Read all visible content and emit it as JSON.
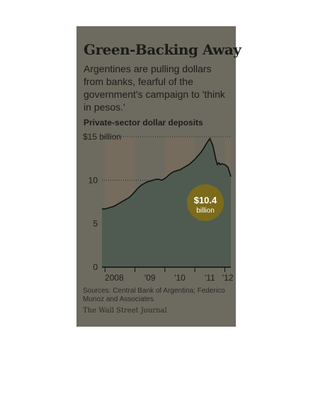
{
  "headline": "Green-Backing Away",
  "dek": "Argentines are pulling dollars from banks, fearful of the government's campaign to 'think in pesos.'",
  "footer": {
    "source": "Sources: Central Bank of Argentina; Federico Munoz and Associates",
    "publisher": "The Wall Street Journal"
  },
  "colors": {
    "panel": "#6d6b60",
    "area": "#4f5b50",
    "line": "#111111",
    "callout": "#7b6b1b",
    "year_band": "#756c5e"
  },
  "chart_data": {
    "type": "area",
    "title": "Private-sector dollar deposits",
    "xlabel": "",
    "ylabel": "",
    "x_ticks": [
      "2008",
      "'09",
      "'10",
      "'11",
      "'12"
    ],
    "y_ticks": [
      "0",
      "5",
      "10",
      "$15 billion"
    ],
    "y_tick_values": [
      0,
      5,
      10,
      15
    ],
    "xlim": [
      2007.9,
      2012.2
    ],
    "ylim": [
      0,
      15
    ],
    "grid": true,
    "x": [
      2007.9,
      2008.0,
      2008.1,
      2008.2,
      2008.3,
      2008.4,
      2008.5,
      2008.6,
      2008.7,
      2008.8,
      2008.9,
      2009.0,
      2009.1,
      2009.2,
      2009.3,
      2009.4,
      2009.5,
      2009.6,
      2009.7,
      2009.8,
      2009.9,
      2010.0,
      2010.1,
      2010.2,
      2010.3,
      2010.4,
      2010.5,
      2010.6,
      2010.7,
      2010.8,
      2010.9,
      2011.0,
      2011.1,
      2011.2,
      2011.3,
      2011.4,
      2011.5,
      2011.6,
      2011.7,
      2011.75,
      2011.8,
      2011.85,
      2011.9,
      2012.0,
      2012.1,
      2012.15,
      2012.2
    ],
    "values": [
      6.7,
      6.7,
      6.8,
      6.9,
      7.0,
      7.2,
      7.4,
      7.6,
      7.8,
      8.0,
      8.3,
      8.7,
      9.1,
      9.4,
      9.6,
      9.8,
      9.9,
      10.0,
      10.1,
      10.1,
      10.0,
      10.2,
      10.5,
      10.8,
      11.0,
      11.1,
      11.2,
      11.4,
      11.6,
      11.8,
      12.1,
      12.4,
      12.8,
      13.2,
      13.7,
      14.3,
      14.8,
      14.0,
      12.4,
      11.8,
      12.0,
      11.8,
      11.9,
      11.8,
      11.5,
      11.0,
      10.4
    ],
    "annotation": {
      "label": "$10.4",
      "unit": "billion",
      "value": 10.4
    }
  }
}
